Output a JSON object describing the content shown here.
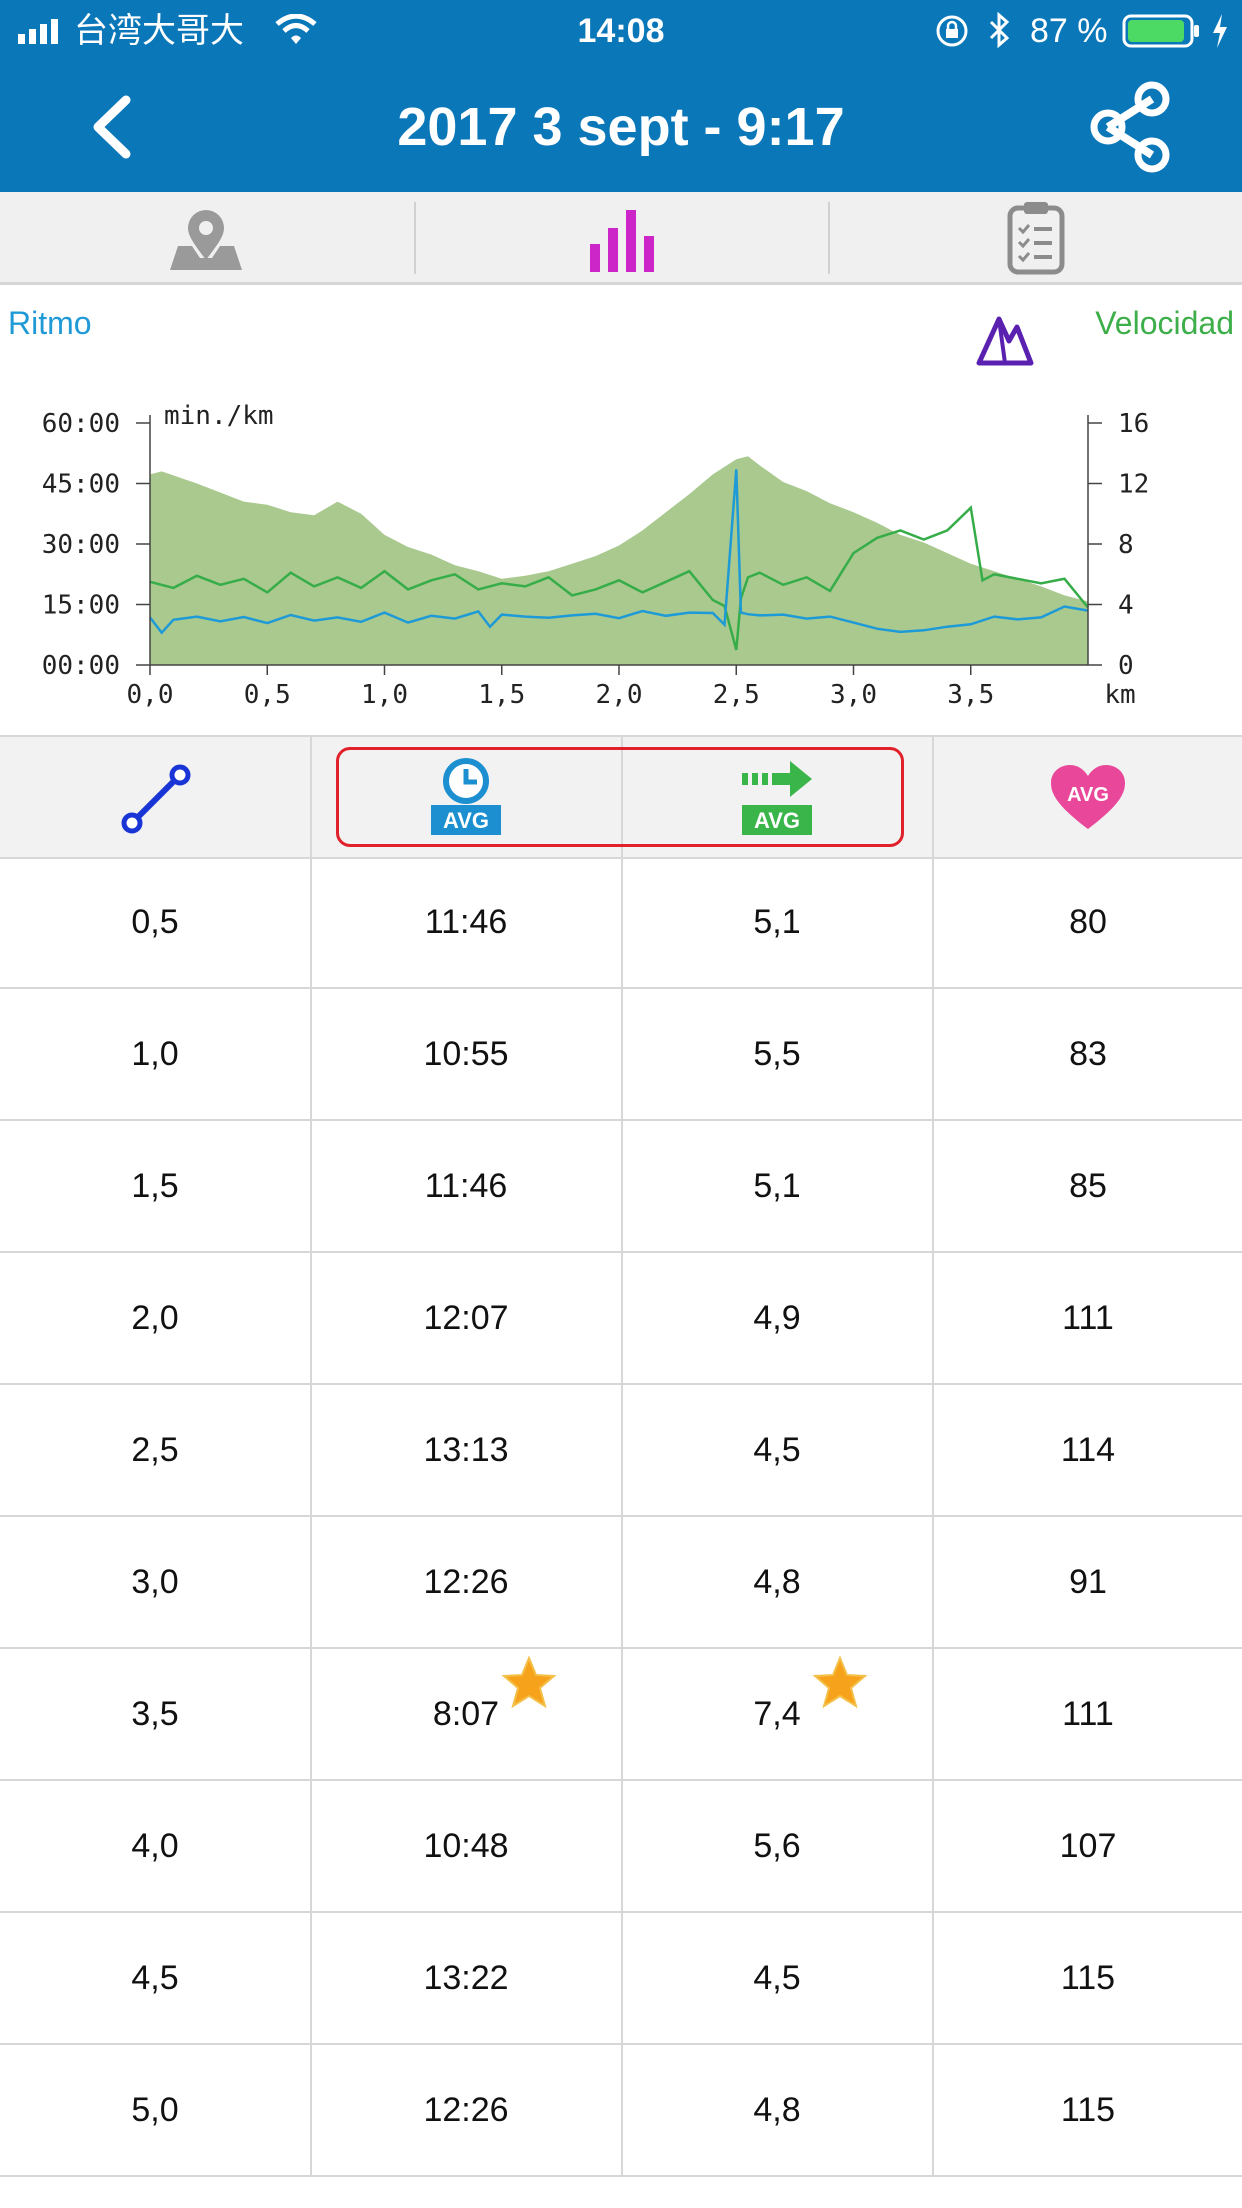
{
  "status_bar": {
    "carrier": "台湾大哥大",
    "time": "14:08",
    "battery": "87 %"
  },
  "nav": {
    "title": "2017 3 sept - 9:17"
  },
  "tabs": [
    {
      "name": "map-tab",
      "icon": "map-pin-icon"
    },
    {
      "name": "charts-tab",
      "icon": "bar-chart-icon",
      "active": true,
      "color": "#cc26c9"
    },
    {
      "name": "summary-tab",
      "icon": "clipboard-icon"
    }
  ],
  "chart_labels": {
    "left": "Ritmo",
    "right": "Velocidad"
  },
  "chart_data": {
    "type": "area",
    "unit_label": "min./km",
    "x_unit": "km",
    "x_ticks": [
      "0,0",
      "0,5",
      "1,0",
      "1,5",
      "2,0",
      "2,5",
      "3,0",
      "3,5"
    ],
    "y_left_ticks": [
      "00:00",
      "15:00",
      "30:00",
      "45:00",
      "60:00"
    ],
    "y_right_ticks": [
      "0",
      "4",
      "8",
      "12",
      "16"
    ],
    "xlim": [
      0,
      4.0
    ],
    "ylim_left_min": [
      0,
      60
    ],
    "ylim_right": [
      0,
      16
    ],
    "colors": {
      "elevation": "#a9c98f",
      "pace": "#1e9ad6",
      "speed": "#36ad49"
    },
    "series": [
      {
        "key": "elevation",
        "x": [
          0,
          0.05,
          0.2,
          0.4,
          0.5,
          0.6,
          0.7,
          0.8,
          0.9,
          1.0,
          1.1,
          1.2,
          1.3,
          1.4,
          1.5,
          1.6,
          1.7,
          1.8,
          1.9,
          2.0,
          2.1,
          2.2,
          2.3,
          2.4,
          2.5,
          2.55,
          2.6,
          2.7,
          2.8,
          2.9,
          3.0,
          3.1,
          3.2,
          3.3,
          3.4,
          3.5,
          3.6,
          3.7,
          3.8,
          3.9,
          4.0
        ],
        "y": [
          12.6,
          12.8,
          12,
          10.8,
          10.6,
          10.1,
          9.9,
          10.8,
          10,
          8.6,
          7.8,
          7.3,
          6.6,
          6.2,
          5.7,
          5.9,
          6.2,
          6.7,
          7.2,
          7.9,
          8.9,
          10.1,
          11.3,
          12.6,
          13.6,
          13.8,
          13.2,
          12.1,
          11.5,
          10.7,
          10.1,
          9.4,
          8.6,
          8.1,
          7.4,
          6.7,
          6.2,
          5.7,
          5.2,
          4.6,
          4.2
        ]
      },
      {
        "key": "speed",
        "x": [
          0,
          0.1,
          0.2,
          0.3,
          0.4,
          0.5,
          0.6,
          0.7,
          0.8,
          0.9,
          1.0,
          1.1,
          1.2,
          1.3,
          1.4,
          1.5,
          1.6,
          1.7,
          1.8,
          1.9,
          2.0,
          2.1,
          2.2,
          2.3,
          2.4,
          2.45,
          2.5,
          2.52,
          2.55,
          2.6,
          2.7,
          2.8,
          2.9,
          3.0,
          3.1,
          3.2,
          3.3,
          3.4,
          3.5,
          3.55,
          3.6,
          3.7,
          3.8,
          3.9,
          4.0
        ],
        "y": [
          5.5,
          5.1,
          5.9,
          5.3,
          5.7,
          4.8,
          6.1,
          5.2,
          5.8,
          5.1,
          6.2,
          5.0,
          5.6,
          6.0,
          5.0,
          5.4,
          5.2,
          5.8,
          4.6,
          5.0,
          5.6,
          4.8,
          5.5,
          6.2,
          4.3,
          3.9,
          1.0,
          4.4,
          5.8,
          6.1,
          5.3,
          5.8,
          4.9,
          7.4,
          8.4,
          8.9,
          8.3,
          8.9,
          10.4,
          5.6,
          6.0,
          5.7,
          5.4,
          5.7,
          3.8
        ]
      },
      {
        "key": "pace",
        "x": [
          0,
          0.05,
          0.1,
          0.2,
          0.3,
          0.4,
          0.5,
          0.6,
          0.7,
          0.8,
          0.9,
          1.0,
          1.1,
          1.2,
          1.3,
          1.4,
          1.45,
          1.5,
          1.6,
          1.7,
          1.8,
          1.9,
          2.0,
          2.1,
          2.2,
          2.3,
          2.4,
          2.45,
          2.5,
          2.52,
          2.55,
          2.6,
          2.7,
          2.8,
          2.9,
          3.0,
          3.1,
          3.2,
          3.3,
          3.4,
          3.5,
          3.6,
          3.7,
          3.8,
          3.9,
          4.0
        ],
        "y": [
          11.8,
          8.0,
          11.2,
          12.0,
          10.8,
          11.9,
          10.4,
          12.4,
          11.0,
          11.8,
          10.7,
          13.0,
          10.5,
          12.2,
          11.5,
          13.3,
          9.5,
          12.5,
          12.0,
          11.7,
          12.3,
          12.7,
          11.6,
          13.4,
          12.2,
          13.0,
          12.9,
          10.0,
          48.5,
          13.0,
          12.6,
          12.3,
          12.5,
          11.5,
          12.0,
          10.5,
          9.0,
          8.2,
          8.6,
          9.5,
          10.1,
          12.0,
          11.3,
          11.8,
          14.5,
          13.5
        ]
      }
    ]
  },
  "table": {
    "header_icons": [
      "distance-icon",
      "avg-pace-icon",
      "avg-speed-icon",
      "avg-heart-rate-icon"
    ],
    "avg_label": "AVG",
    "rows": [
      {
        "km": "0,5",
        "pace": "11:46",
        "speed": "5,1",
        "hr": "80"
      },
      {
        "km": "1,0",
        "pace": "10:55",
        "speed": "5,5",
        "hr": "83"
      },
      {
        "km": "1,5",
        "pace": "11:46",
        "speed": "5,1",
        "hr": "85"
      },
      {
        "km": "2,0",
        "pace": "12:07",
        "speed": "4,9",
        "hr": "111"
      },
      {
        "km": "2,5",
        "pace": "13:13",
        "speed": "4,5",
        "hr": "114"
      },
      {
        "km": "3,0",
        "pace": "12:26",
        "speed": "4,8",
        "hr": "91"
      },
      {
        "km": "3,5",
        "pace": "8:07",
        "speed": "7,4",
        "hr": "111",
        "best": true
      },
      {
        "km": "4,0",
        "pace": "10:48",
        "speed": "5,6",
        "hr": "107"
      },
      {
        "km": "4,5",
        "pace": "13:22",
        "speed": "4,5",
        "hr": "115"
      },
      {
        "km": "5,0",
        "pace": "12:26",
        "speed": "4,8",
        "hr": "115"
      }
    ]
  }
}
